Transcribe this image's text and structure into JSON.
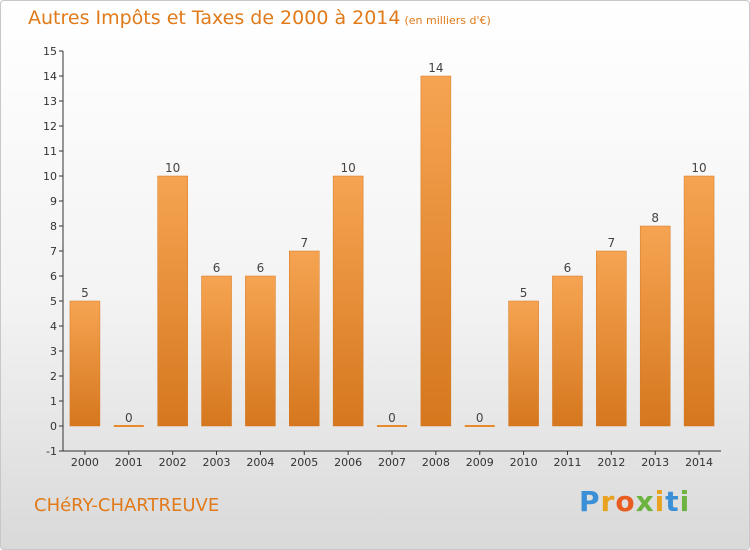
{
  "chart_data": {
    "type": "bar",
    "title": "Autres Impôts et Taxes de 2000 à 2014",
    "unit_label": "(en milliers d'€)",
    "categories": [
      "2000",
      "2001",
      "2002",
      "2003",
      "2004",
      "2005",
      "2006",
      "2007",
      "2008",
      "2009",
      "2010",
      "2011",
      "2012",
      "2013",
      "2014"
    ],
    "values": [
      5,
      0,
      10,
      6,
      6,
      7,
      10,
      0,
      14,
      0,
      5,
      6,
      7,
      8,
      10
    ],
    "ylim": [
      -1,
      15
    ],
    "yticks": [
      -1,
      0,
      1,
      2,
      3,
      4,
      5,
      6,
      7,
      8,
      9,
      10,
      11,
      12,
      13,
      14,
      15
    ],
    "ytick_labels": [
      "-1",
      "0",
      "1",
      "2",
      "3",
      "4",
      "5",
      "6",
      "7",
      "8",
      "9",
      "10",
      "11",
      "12",
      "13",
      "14",
      "15"
    ],
    "grid": false,
    "bar_color": "#f0902f"
  },
  "footer": {
    "place": "CHéRY-CHARTREUVE",
    "brand_letters": [
      {
        "ch": "P",
        "color": "#3a8fd6"
      },
      {
        "ch": "r",
        "color": "#e8a21f"
      },
      {
        "ch": "o",
        "color": "#e85d1f"
      },
      {
        "ch": "x",
        "color": "#6cb33f"
      },
      {
        "ch": "i",
        "color": "#e8a21f"
      },
      {
        "ch": "t",
        "color": "#3a8fd6"
      },
      {
        "ch": "i",
        "color": "#6cb33f"
      }
    ]
  }
}
